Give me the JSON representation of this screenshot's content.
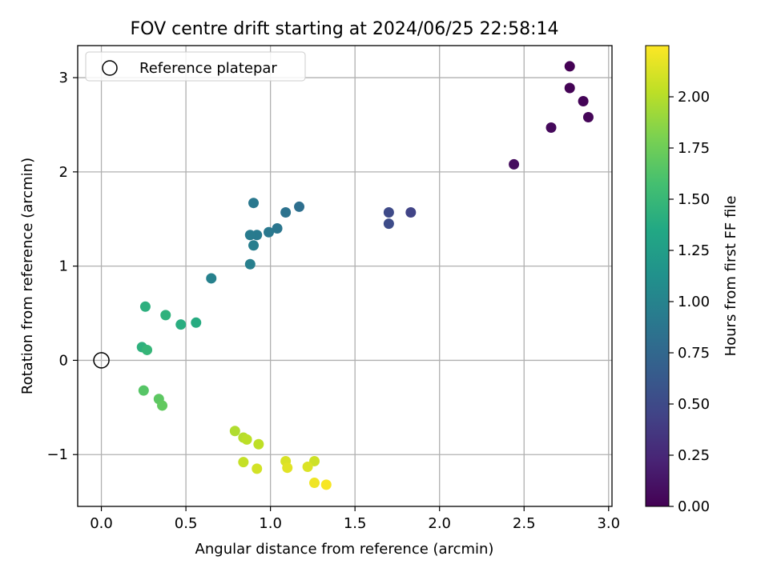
{
  "chart_data": {
    "type": "scatter",
    "title": "FOV centre drift starting at 2024/06/25 22:58:14",
    "xlabel": "Angular distance from reference (arcmin)",
    "ylabel": "Rotation from reference (arcmin)",
    "xlim": [
      -0.14,
      3.02
    ],
    "ylim": [
      -1.55,
      3.34
    ],
    "xticks": [
      "0.0",
      "0.5",
      "1.0",
      "1.5",
      "2.0",
      "2.5",
      "3.0"
    ],
    "xtick_values": [
      0,
      0.5,
      1,
      1.5,
      2,
      2.5,
      3
    ],
    "yticks": [
      "−1",
      "0",
      "1",
      "2",
      "3"
    ],
    "ytick_values": [
      -1,
      0,
      1,
      2,
      3
    ],
    "grid": true,
    "legend": {
      "placement": "top-left",
      "entries": [
        "Reference platepar"
      ]
    },
    "reference_point": {
      "x": 0,
      "y": 0
    },
    "colorbar": {
      "label": "Hours from first FF file",
      "colormap": "viridis",
      "range": [
        0,
        2.25
      ],
      "ticks": [
        "0.00",
        "0.25",
        "0.50",
        "0.75",
        "1.00",
        "1.25",
        "1.50",
        "1.75",
        "2.00"
      ],
      "tick_values": [
        0,
        0.25,
        0.5,
        0.75,
        1.0,
        1.25,
        1.5,
        1.75,
        2.0
      ]
    },
    "points": [
      {
        "x": 2.77,
        "y": 3.12,
        "hours": 0.0
      },
      {
        "x": 2.77,
        "y": 2.89,
        "hours": 0.01
      },
      {
        "x": 2.85,
        "y": 2.75,
        "hours": 0.02
      },
      {
        "x": 2.88,
        "y": 2.58,
        "hours": 0.03
      },
      {
        "x": 2.66,
        "y": 2.47,
        "hours": 0.05
      },
      {
        "x": 2.44,
        "y": 2.08,
        "hours": 0.07
      },
      {
        "x": 1.83,
        "y": 1.57,
        "hours": 0.45
      },
      {
        "x": 1.7,
        "y": 1.57,
        "hours": 0.5
      },
      {
        "x": 1.7,
        "y": 1.45,
        "hours": 0.52
      },
      {
        "x": 1.17,
        "y": 1.63,
        "hours": 0.82
      },
      {
        "x": 1.09,
        "y": 1.57,
        "hours": 0.85
      },
      {
        "x": 0.9,
        "y": 1.67,
        "hours": 0.9
      },
      {
        "x": 1.04,
        "y": 1.4,
        "hours": 0.88
      },
      {
        "x": 0.99,
        "y": 1.36,
        "hours": 0.9
      },
      {
        "x": 0.92,
        "y": 1.33,
        "hours": 0.92
      },
      {
        "x": 0.88,
        "y": 1.33,
        "hours": 0.93
      },
      {
        "x": 0.9,
        "y": 1.22,
        "hours": 0.95
      },
      {
        "x": 0.88,
        "y": 1.02,
        "hours": 0.96
      },
      {
        "x": 0.65,
        "y": 0.87,
        "hours": 0.98
      },
      {
        "x": 0.26,
        "y": 0.57,
        "hours": 1.42
      },
      {
        "x": 0.38,
        "y": 0.48,
        "hours": 1.44
      },
      {
        "x": 0.47,
        "y": 0.38,
        "hours": 1.4
      },
      {
        "x": 0.56,
        "y": 0.4,
        "hours": 1.38
      },
      {
        "x": 0.24,
        "y": 0.14,
        "hours": 1.43
      },
      {
        "x": 0.27,
        "y": 0.11,
        "hours": 1.48
      },
      {
        "x": 0.25,
        "y": -0.32,
        "hours": 1.65
      },
      {
        "x": 0.34,
        "y": -0.41,
        "hours": 1.68
      },
      {
        "x": 0.36,
        "y": -0.48,
        "hours": 1.7
      },
      {
        "x": 0.79,
        "y": -0.75,
        "hours": 1.98
      },
      {
        "x": 0.84,
        "y": -0.82,
        "hours": 2.0
      },
      {
        "x": 0.86,
        "y": -0.84,
        "hours": 2.02
      },
      {
        "x": 0.93,
        "y": -0.89,
        "hours": 2.03
      },
      {
        "x": 0.84,
        "y": -1.08,
        "hours": 2.05
      },
      {
        "x": 0.92,
        "y": -1.15,
        "hours": 2.1
      },
      {
        "x": 1.09,
        "y": -1.07,
        "hours": 2.12
      },
      {
        "x": 1.1,
        "y": -1.14,
        "hours": 2.15
      },
      {
        "x": 1.26,
        "y": -1.07,
        "hours": 2.08
      },
      {
        "x": 1.22,
        "y": -1.13,
        "hours": 2.13
      },
      {
        "x": 1.26,
        "y": -1.3,
        "hours": 2.2
      },
      {
        "x": 1.33,
        "y": -1.32,
        "hours": 2.23
      }
    ]
  }
}
